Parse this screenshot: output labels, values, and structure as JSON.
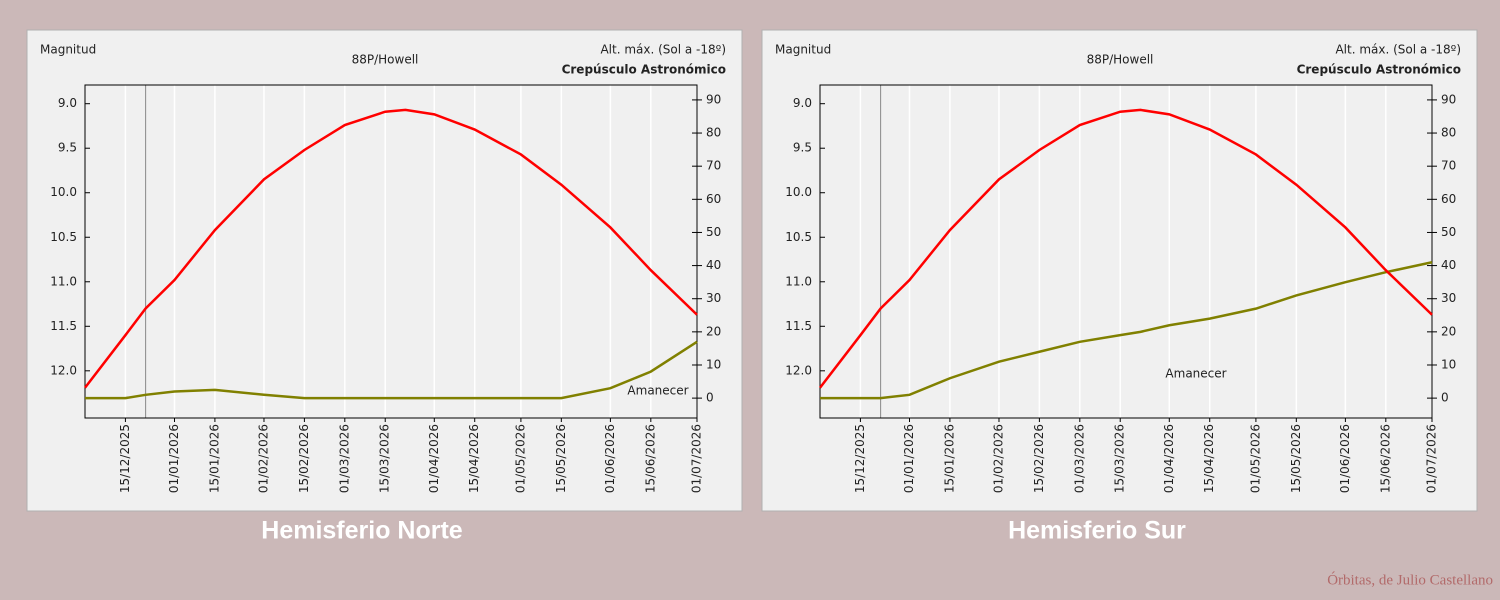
{
  "chart_data": [
    {
      "type": "line",
      "title": "88P/Howell",
      "ylabel": "Magnitud",
      "y2label": [
        "Alt. máx. (Sol a -18º)",
        "Crepúsculo Astronómico"
      ],
      "caption": "Hemisferio Norte",
      "annotation": "Amanecer",
      "x": [
        "01/12/2025",
        "15/12/2025",
        "22/12/2025",
        "01/01/2026",
        "15/01/2026",
        "01/02/2026",
        "15/02/2026",
        "01/03/2026",
        "15/03/2026",
        "22/03/2026",
        "01/04/2026",
        "15/04/2026",
        "01/05/2026",
        "15/05/2026",
        "01/06/2026",
        "15/06/2026",
        "01/07/2026"
      ],
      "series": [
        {
          "color": "#ff0000",
          "values": [
            12.19,
            11.6,
            11.3,
            10.98,
            10.42,
            9.85,
            9.52,
            9.24,
            9.09,
            9.07,
            9.12,
            9.29,
            9.57,
            9.91,
            10.39,
            10.87,
            11.37
          ]
        },
        {
          "color": "#808000",
          "axis": "y2",
          "values": [
            0,
            0,
            1,
            2,
            2.5,
            1,
            0,
            0,
            0,
            0,
            0,
            0,
            0,
            0,
            3,
            8,
            17
          ]
        }
      ],
      "xlim": [
        "01/12/2025",
        "01/07/2026"
      ],
      "xticks": [
        "15/12/2025",
        "01/01/2026",
        "15/01/2026",
        "01/02/2026",
        "15/02/2026",
        "01/03/2026",
        "15/03/2026",
        "01/04/2026",
        "15/04/2026",
        "01/05/2026",
        "15/05/2026",
        "01/06/2026",
        "15/06/2026",
        "01/07/2026"
      ],
      "reference_x": "22/12/2025",
      "ylim": [
        12.53,
        8.79
      ],
      "yticks": [
        {
          "value": 9,
          "label": "9.0"
        },
        9.5,
        {
          "value": 10,
          "label": "10.0"
        },
        10.5,
        {
          "value": 11,
          "label": "11.0"
        },
        11.5,
        {
          "value": 12,
          "label": "12.0"
        }
      ],
      "y2lim": [
        -6,
        94.5
      ],
      "y2ticks": [
        0,
        10,
        20,
        30,
        40,
        50,
        60,
        70,
        80,
        90
      ],
      "grid": true
    },
    {
      "type": "line",
      "title": "88P/Howell",
      "ylabel": "Magnitud",
      "y2label": [
        "Alt. máx. (Sol a -18º)",
        "Crepúsculo Astronómico"
      ],
      "caption": "Hemisferio Sur",
      "annotation": "Amanecer",
      "x": [
        "01/12/2025",
        "15/12/2025",
        "22/12/2025",
        "01/01/2026",
        "15/01/2026",
        "01/02/2026",
        "15/02/2026",
        "01/03/2026",
        "15/03/2026",
        "22/03/2026",
        "01/04/2026",
        "15/04/2026",
        "01/05/2026",
        "15/05/2026",
        "01/06/2026",
        "15/06/2026",
        "01/07/2026"
      ],
      "series": [
        {
          "color": "#ff0000",
          "values": [
            12.19,
            11.6,
            11.3,
            10.98,
            10.42,
            9.85,
            9.52,
            9.24,
            9.09,
            9.07,
            9.12,
            9.29,
            9.57,
            9.91,
            10.39,
            10.87,
            11.37
          ]
        },
        {
          "color": "#808000",
          "axis": "y2",
          "values": [
            0,
            0,
            0,
            1,
            6,
            11,
            14,
            17,
            19,
            20,
            22,
            24,
            27,
            31,
            35,
            38,
            41
          ]
        }
      ],
      "xlim": [
        "01/12/2025",
        "01/07/2026"
      ],
      "xticks": [
        "15/12/2025",
        "01/01/2026",
        "15/01/2026",
        "01/02/2026",
        "15/02/2026",
        "01/03/2026",
        "15/03/2026",
        "01/04/2026",
        "15/04/2026",
        "01/05/2026",
        "15/05/2026",
        "01/06/2026",
        "15/06/2026",
        "01/07/2026"
      ],
      "reference_x": "22/12/2025",
      "ylim": [
        12.53,
        8.79
      ],
      "yticks": [
        {
          "value": 9,
          "label": "9.0"
        },
        9.5,
        {
          "value": 10,
          "label": "10.0"
        },
        10.5,
        {
          "value": 11,
          "label": "11.0"
        },
        11.5,
        {
          "value": 12,
          "label": "12.0"
        }
      ],
      "y2lim": [
        -6,
        94.5
      ],
      "y2ticks": [
        0,
        10,
        20,
        30,
        40,
        50,
        60,
        70,
        80,
        90
      ],
      "grid": true
    }
  ],
  "credit": "Órbitas, de Julio Castellano"
}
